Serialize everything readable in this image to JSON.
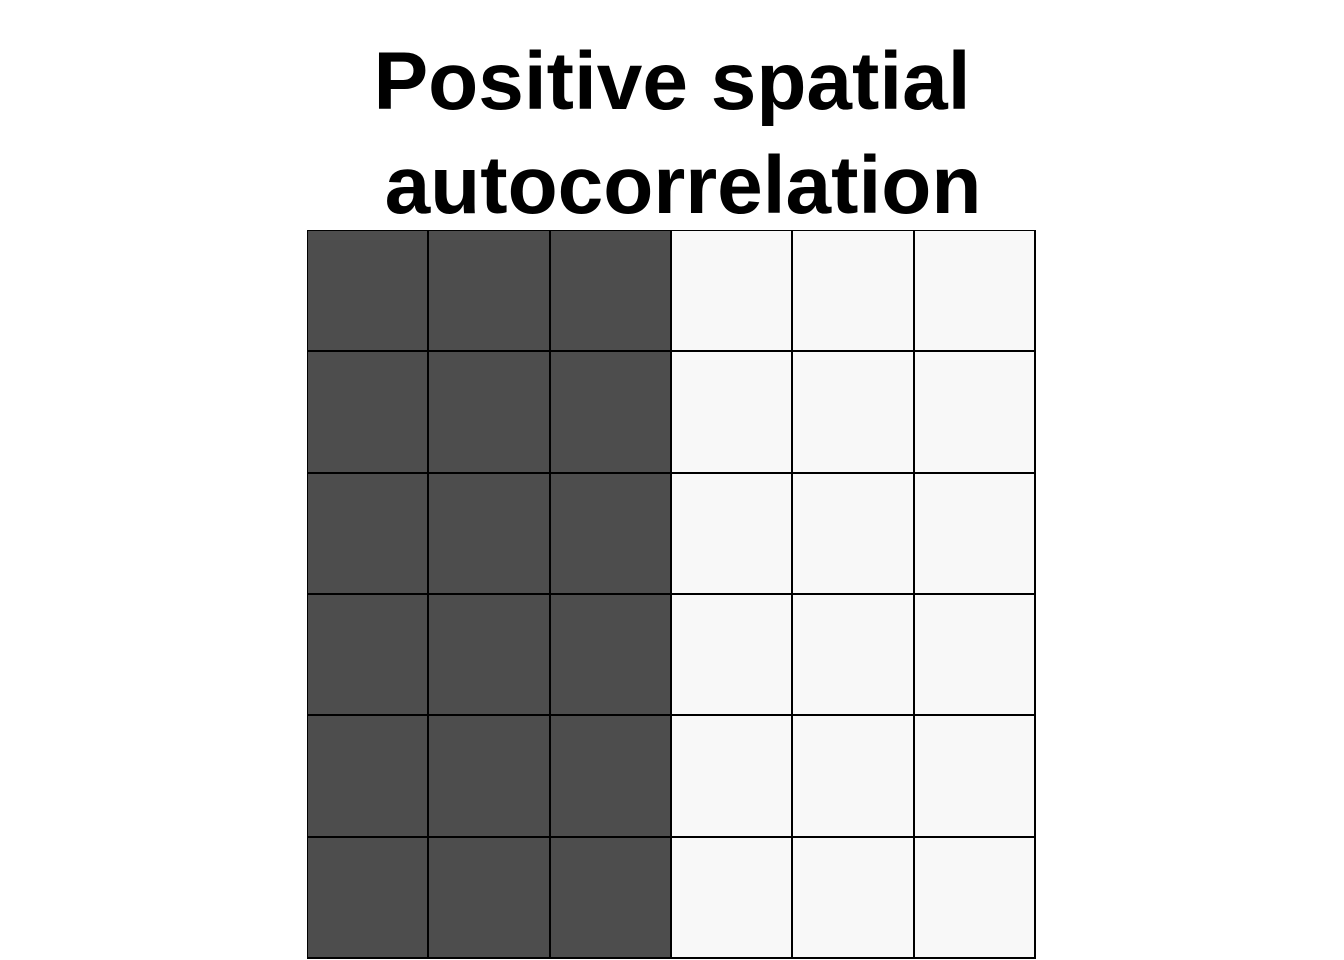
{
  "title": {
    "line1": "Positive spatial",
    "line2": "autocorrelation"
  },
  "grid": {
    "rows": 6,
    "cols": 6,
    "colors": {
      "dark": "#4d4d4d",
      "light": "#f8f8f8"
    },
    "cells": [
      [
        "dark",
        "dark",
        "dark",
        "light",
        "light",
        "light"
      ],
      [
        "dark",
        "dark",
        "dark",
        "light",
        "light",
        "light"
      ],
      [
        "dark",
        "dark",
        "dark",
        "light",
        "light",
        "light"
      ],
      [
        "dark",
        "dark",
        "dark",
        "light",
        "light",
        "light"
      ],
      [
        "dark",
        "dark",
        "dark",
        "light",
        "light",
        "light"
      ],
      [
        "dark",
        "dark",
        "dark",
        "light",
        "light",
        "light"
      ]
    ]
  }
}
